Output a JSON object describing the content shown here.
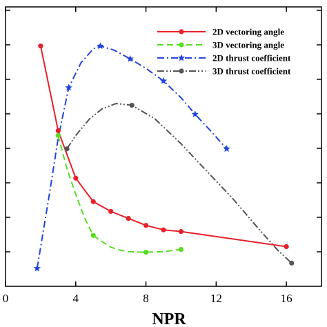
{
  "chart_data": {
    "type": "line",
    "title": "",
    "xlabel": "NPR",
    "ylabel": "",
    "xlim": [
      0,
      18
    ],
    "x_ticks": [
      0,
      4,
      8,
      12,
      16
    ],
    "grid": false,
    "legend": "top-right",
    "series": [
      {
        "name": "2D vectoring angle",
        "color": "#e8202a",
        "style": "solid",
        "marker": "circle",
        "points": [
          [
            2.0,
            0.86
          ],
          [
            3.0,
            0.557
          ],
          [
            4.0,
            0.387
          ],
          [
            5.0,
            0.303
          ],
          [
            6.0,
            0.268
          ],
          [
            7.0,
            0.243
          ],
          [
            8.0,
            0.218
          ],
          [
            9.0,
            0.202
          ],
          [
            10.0,
            0.196
          ],
          [
            16.0,
            0.142
          ]
        ]
      },
      {
        "name": "3D vectoring angle",
        "color": "#55dd22",
        "style": "dash",
        "marker": "circle",
        "points": [
          [
            3.0,
            0.54
          ],
          [
            5.0,
            0.182
          ],
          [
            8.0,
            0.122
          ],
          [
            10.0,
            0.132
          ]
        ],
        "curve": [
          [
            3.0,
            0.54
          ],
          [
            3.5,
            0.42
          ],
          [
            4.0,
            0.33
          ],
          [
            4.5,
            0.245
          ],
          [
            5.0,
            0.182
          ],
          [
            5.5,
            0.16
          ],
          [
            6.0,
            0.14
          ],
          [
            6.5,
            0.13
          ],
          [
            7.0,
            0.124
          ],
          [
            8.0,
            0.122
          ],
          [
            9.0,
            0.124
          ],
          [
            10.0,
            0.132
          ]
        ]
      },
      {
        "name": "2D thrust coefficient",
        "color": "#2244dd",
        "style": "dashdot",
        "marker": "star",
        "points": [
          [
            1.8,
            0.064
          ],
          [
            3.6,
            0.711
          ],
          [
            5.4,
            0.86
          ],
          [
            7.1,
            0.814
          ],
          [
            9.0,
            0.735
          ],
          [
            10.8,
            0.616
          ],
          [
            12.6,
            0.492
          ]
        ],
        "curve": [
          [
            1.8,
            0.064
          ],
          [
            2.5,
            0.33
          ],
          [
            3.0,
            0.53
          ],
          [
            3.6,
            0.711
          ],
          [
            4.3,
            0.8
          ],
          [
            5.0,
            0.85
          ],
          [
            5.4,
            0.86
          ],
          [
            6.2,
            0.845
          ],
          [
            7.1,
            0.814
          ],
          [
            8.0,
            0.78
          ],
          [
            9.0,
            0.735
          ],
          [
            10.0,
            0.675
          ],
          [
            10.8,
            0.616
          ],
          [
            11.7,
            0.555
          ],
          [
            12.6,
            0.492
          ]
        ]
      },
      {
        "name": "3D thrust coefficient",
        "color": "#555555",
        "style": "dashdotdot",
        "marker": "circle",
        "points": [
          [
            3.5,
            0.492
          ],
          [
            7.2,
            0.648
          ],
          [
            16.3,
            0.083
          ]
        ],
        "curve": [
          [
            3.5,
            0.492
          ],
          [
            4.0,
            0.54
          ],
          [
            4.8,
            0.6
          ],
          [
            5.5,
            0.635
          ],
          [
            6.3,
            0.654
          ],
          [
            7.2,
            0.648
          ],
          [
            8.5,
            0.6
          ],
          [
            10.0,
            0.51
          ],
          [
            11.5,
            0.41
          ],
          [
            13.0,
            0.31
          ],
          [
            14.5,
            0.2
          ],
          [
            15.5,
            0.13
          ],
          [
            16.3,
            0.083
          ]
        ]
      }
    ]
  }
}
